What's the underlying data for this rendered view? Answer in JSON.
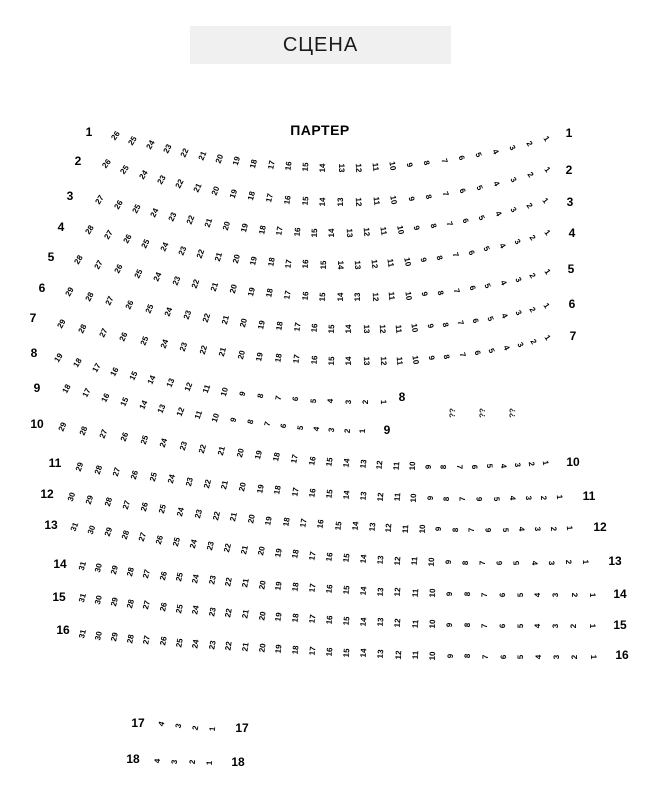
{
  "stage": {
    "label": "СЦЕНА"
  },
  "section": {
    "title": "ПАРТЕР"
  },
  "unknown_seats": {
    "items": [
      "??",
      "??",
      "??"
    ]
  },
  "rows": [
    {
      "label": "1",
      "seats": [
        "26",
        "25",
        "24",
        "23",
        "22",
        "21",
        "20",
        "19",
        "18",
        "17",
        "16",
        "15",
        "14",
        "13",
        "12",
        "11",
        "10",
        "9",
        "8",
        "7",
        "6",
        "5",
        "4",
        "3",
        "2",
        "1"
      ]
    },
    {
      "label": "2",
      "seats": [
        "26",
        "25",
        "24",
        "23",
        "22",
        "21",
        "20",
        "19",
        "18",
        "17",
        "16",
        "15",
        "14",
        "13",
        "12",
        "11",
        "10",
        "9",
        "8",
        "7",
        "6",
        "5",
        "4",
        "3",
        "2",
        "1"
      ]
    },
    {
      "label": "3",
      "seats": [
        "27",
        "26",
        "25",
        "24",
        "23",
        "22",
        "21",
        "20",
        "19",
        "18",
        "17",
        "16",
        "15",
        "14",
        "13",
        "12",
        "11",
        "10",
        "9",
        "8",
        "7",
        "6",
        "5",
        "4",
        "3",
        "2",
        "1"
      ]
    },
    {
      "label": "4",
      "seats": [
        "28",
        "27",
        "26",
        "25",
        "24",
        "23",
        "22",
        "21",
        "20",
        "19",
        "18",
        "17",
        "16",
        "15",
        "14",
        "13",
        "12",
        "11",
        "10",
        "9",
        "8",
        "7",
        "6",
        "5",
        "4",
        "3",
        "2",
        "1"
      ]
    },
    {
      "label": "5",
      "seats": [
        "28",
        "27",
        "26",
        "25",
        "24",
        "23",
        "22",
        "21",
        "20",
        "19",
        "18",
        "17",
        "16",
        "15",
        "14",
        "13",
        "12",
        "11",
        "10",
        "9",
        "8",
        "7",
        "6",
        "5",
        "4",
        "3",
        "2",
        "1"
      ]
    },
    {
      "label": "6",
      "seats": [
        "29",
        "28",
        "27",
        "26",
        "25",
        "24",
        "23",
        "22",
        "21",
        "20",
        "19",
        "18",
        "17",
        "16",
        "15",
        "14",
        "13",
        "12",
        "11",
        "10",
        "9",
        "8",
        "7",
        "6",
        "5",
        "4",
        "3",
        "2",
        "1"
      ]
    },
    {
      "label": "7",
      "seats": [
        "29",
        "28",
        "27",
        "26",
        "25",
        "24",
        "23",
        "22",
        "21",
        "20",
        "19",
        "18",
        "17",
        "16",
        "15",
        "14",
        "13",
        "12",
        "11",
        "10",
        "9",
        "8",
        "7",
        "6",
        "5",
        "4",
        "3",
        "2",
        "1"
      ]
    },
    {
      "label": "8",
      "seats": [
        "19",
        "18",
        "17",
        "16",
        "15",
        "14",
        "13",
        "12",
        "11",
        "10",
        "9",
        "8",
        "7",
        "6",
        "5",
        "4",
        "3",
        "2",
        "1"
      ]
    },
    {
      "label": "9",
      "seats": [
        "18",
        "17",
        "16",
        "15",
        "14",
        "13",
        "12",
        "11",
        "10",
        "9",
        "8",
        "7",
        "6",
        "5",
        "4",
        "3",
        "2",
        "1"
      ]
    },
    {
      "label": "10",
      "seats": [
        "29",
        "28",
        "27",
        "26",
        "25",
        "24",
        "23",
        "22",
        "21",
        "20",
        "19",
        "18",
        "17",
        "16",
        "15",
        "14",
        "13",
        "12",
        "11",
        "10",
        "9",
        "8",
        "7",
        "6",
        "5",
        "4",
        "3",
        "2",
        "1"
      ]
    },
    {
      "label": "11",
      "seats": [
        "29",
        "28",
        "27",
        "26",
        "25",
        "24",
        "23",
        "22",
        "21",
        "20",
        "19",
        "18",
        "17",
        "16",
        "15",
        "14",
        "13",
        "12",
        "11",
        "10",
        "9",
        "8",
        "7",
        "6",
        "5",
        "4",
        "3",
        "2",
        "1"
      ]
    },
    {
      "label": "12",
      "seats": [
        "30",
        "29",
        "28",
        "27",
        "26",
        "25",
        "24",
        "23",
        "22",
        "21",
        "20",
        "19",
        "18",
        "17",
        "16",
        "15",
        "14",
        "13",
        "12",
        "11",
        "10",
        "9",
        "8",
        "7",
        "6",
        "5",
        "4",
        "3",
        "2",
        "1"
      ]
    },
    {
      "label": "13",
      "seats": [
        "31",
        "30",
        "29",
        "28",
        "27",
        "26",
        "25",
        "24",
        "23",
        "22",
        "21",
        "20",
        "19",
        "18",
        "17",
        "16",
        "15",
        "14",
        "13",
        "12",
        "11",
        "10",
        "9",
        "8",
        "7",
        "6",
        "5",
        "4",
        "3",
        "2",
        "1"
      ]
    },
    {
      "label": "14",
      "seats": [
        "31",
        "30",
        "29",
        "28",
        "27",
        "26",
        "25",
        "24",
        "23",
        "22",
        "21",
        "20",
        "19",
        "18",
        "17",
        "16",
        "15",
        "14",
        "13",
        "12",
        "11",
        "10",
        "9",
        "8",
        "7",
        "6",
        "5",
        "4",
        "3",
        "2",
        "1"
      ]
    },
    {
      "label": "15",
      "seats": [
        "31",
        "30",
        "29",
        "28",
        "27",
        "26",
        "25",
        "24",
        "23",
        "22",
        "21",
        "20",
        "19",
        "18",
        "17",
        "16",
        "15",
        "14",
        "13",
        "12",
        "11",
        "10",
        "9",
        "8",
        "7",
        "6",
        "5",
        "4",
        "3",
        "2",
        "1"
      ]
    },
    {
      "label": "16",
      "seats": [
        "31",
        "30",
        "29",
        "28",
        "27",
        "26",
        "25",
        "24",
        "23",
        "22",
        "21",
        "20",
        "19",
        "18",
        "17",
        "16",
        "15",
        "14",
        "13",
        "12",
        "11",
        "10",
        "9",
        "8",
        "7",
        "6",
        "5",
        "4",
        "3",
        "2",
        "1"
      ]
    },
    {
      "label": "17",
      "seats": [
        "4",
        "3",
        "2",
        "1"
      ]
    },
    {
      "label": "18",
      "seats": [
        "4",
        "3",
        "2",
        "1"
      ]
    }
  ]
}
